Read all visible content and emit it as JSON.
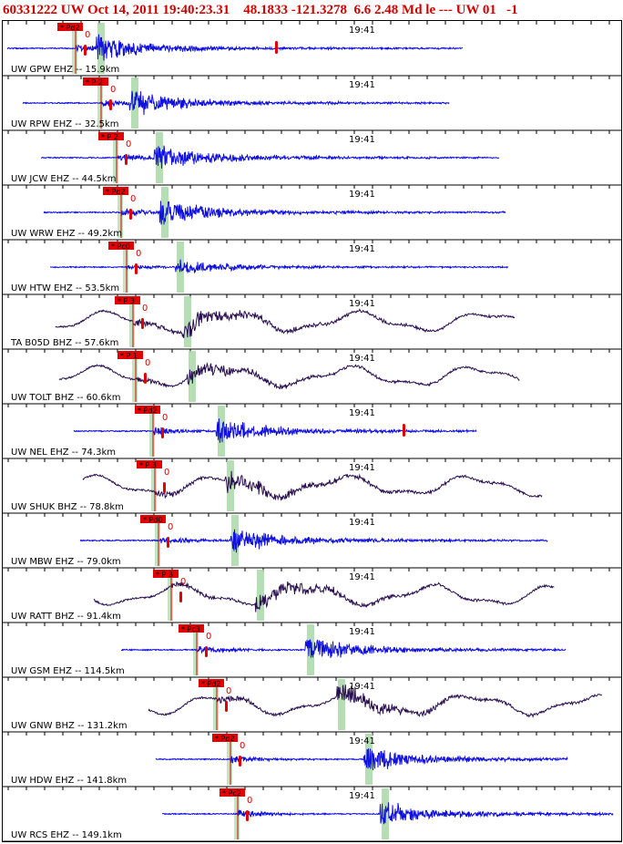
{
  "header": {
    "text": "60331222 UW Oct 14, 2011 19:40:23.31    48.1833 -121.3278  6.6 2.48 Md le --- UW 01   -1"
  },
  "colors": {
    "trace_blue": "#1010e0",
    "trace_purple": "#2a1050",
    "pick_red": "#e00000",
    "header_red": "#d00000",
    "s_shade": "#a8d8a8"
  },
  "traces": [
    {
      "label": "UW GPW EHZ -- 15.9km",
      "time": "19:41",
      "pick": "Pd2",
      "color": "blue"
    },
    {
      "label": "UW RPW EHZ -- 32.5km",
      "time": "19:41",
      "pick": "P 2",
      "color": "blue"
    },
    {
      "label": "UW JCW EHZ -- 44.5km",
      "time": "19:41",
      "pick": "P 2",
      "color": "blue"
    },
    {
      "label": "UW WRW EHZ -- 49.2km",
      "time": "19:41",
      "pick": "Pd2",
      "color": "blue"
    },
    {
      "label": "UW HTW EHZ -- 53.5km",
      "time": "19:41",
      "pick": "Pc0",
      "color": "blue"
    },
    {
      "label": "TA B05D BHZ -- 57.6km",
      "time": "19:41",
      "pick": "P 3",
      "color": "purple"
    },
    {
      "label": "UW TOLT BHZ -- 60.6km",
      "time": "19:41",
      "pick": "P 1",
      "color": "purple"
    },
    {
      "label": "UW NEL EHZ -- 74.3km",
      "time": "19:41",
      "pick": "Pd2",
      "color": "blue"
    },
    {
      "label": "UW SHUK BHZ -- 78.8km",
      "time": "19:41",
      "pick": "P 3",
      "color": "purple"
    },
    {
      "label": "UW MBW EHZ -- 79.0km",
      "time": "19:41",
      "pick": "Pd0",
      "color": "blue"
    },
    {
      "label": "UW RATT BHZ -- 91.4km",
      "time": "19:41",
      "pick": "P 3",
      "color": "purple"
    },
    {
      "label": "UW GSM EHZ -- 114.5km",
      "time": "19:41",
      "pick": "Pc3",
      "color": "blue"
    },
    {
      "label": "UW GNW BHZ -- 131.2km",
      "time": "19:41",
      "pick": "Pd2",
      "color": "purple"
    },
    {
      "label": "UW HDW EHZ -- 141.8km",
      "time": "19:41",
      "pick": "Pd2",
      "color": "blue"
    },
    {
      "label": "UW RCS EHZ -- 149.1km",
      "time": "19:41",
      "pick": "Pc2",
      "color": "blue"
    }
  ],
  "pick_marker_text": "0"
}
